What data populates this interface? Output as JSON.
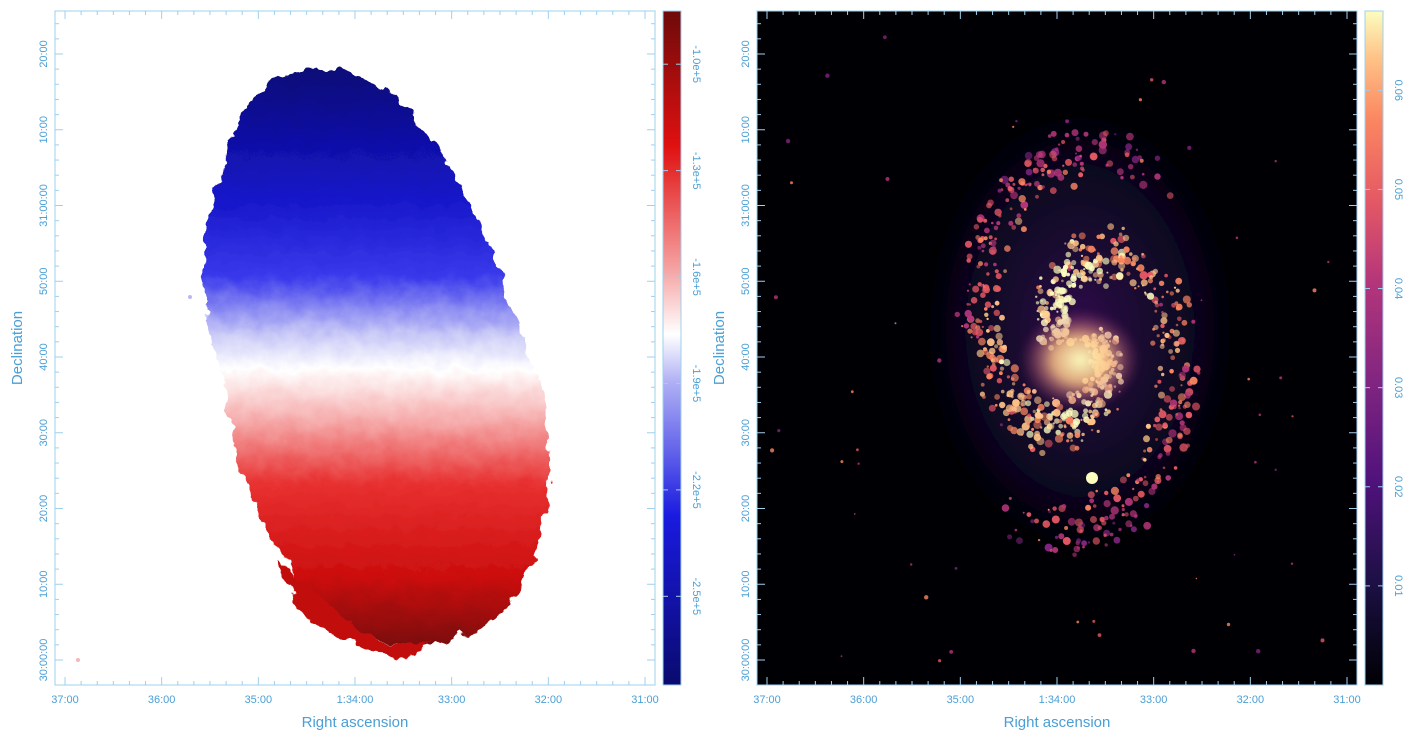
{
  "chart_data": [
    {
      "type": "heatmap",
      "title": "",
      "xlabel": "Right ascension",
      "ylabel": "Declination",
      "x_ticks": [
        "37:00",
        "36:00",
        "35:00",
        "1:34:00",
        "33:00",
        "32:00",
        "31:00"
      ],
      "y_ticks": [
        "30:00:00",
        "10:00",
        "20:00",
        "30:00",
        "40:00",
        "50:00",
        "31:00:00",
        "10:00",
        "20:00"
      ],
      "colorbar": {
        "colormap": "seismic (blue-white-red)",
        "ticks": [
          "-2.5e+5",
          "-2.2e+5",
          "-1.9e+5",
          "-1.6e+5",
          "-1.3e+5",
          "-1.0e+5"
        ],
        "tick_values": [
          -250000,
          -220000,
          -190000,
          -160000,
          -130000,
          -100000
        ],
        "range": [
          -275000,
          -85000
        ]
      },
      "colors": {
        "low": "#0a0a6e",
        "mid": "#ffffff",
        "high": "#6e0a0a",
        "axis": "#4a9fd5"
      }
    },
    {
      "type": "heatmap",
      "title": "",
      "xlabel": "Right ascension",
      "ylabel": "Declination",
      "x_ticks": [
        "37:00",
        "36:00",
        "35:00",
        "1:34:00",
        "33:00",
        "32:00",
        "31:00"
      ],
      "y_ticks": [
        "30:00:00",
        "10:00",
        "20:00",
        "30:00",
        "40:00",
        "50:00",
        "31:00:00",
        "10:00",
        "20:00"
      ],
      "colorbar": {
        "colormap": "magma",
        "ticks": [
          "0.01",
          "0.02",
          "0.03",
          "0.04",
          "0.05",
          "0.06"
        ],
        "tick_values": [
          0.01,
          0.02,
          0.03,
          0.04,
          0.05,
          0.06
        ],
        "range": [
          0,
          0.068
        ]
      },
      "colors": {
        "background": "#000004",
        "high": "#fcfdbf",
        "axis": "#4a9fd5"
      }
    }
  ]
}
